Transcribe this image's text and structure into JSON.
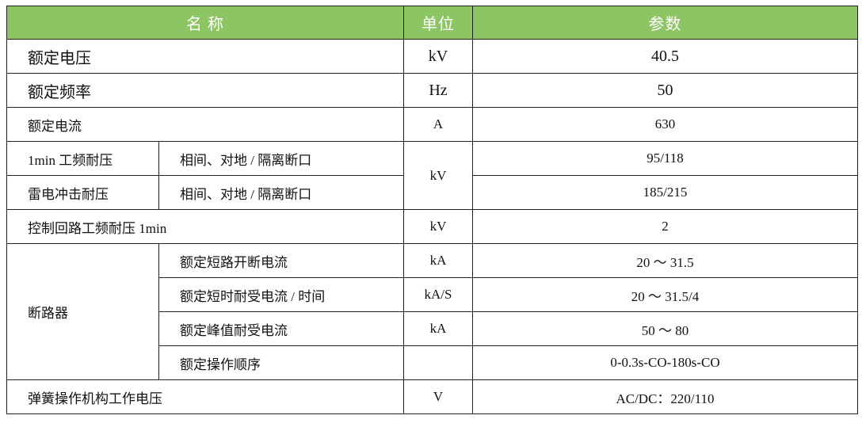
{
  "header": {
    "name": "名 称",
    "unit": "单位",
    "param": "参数",
    "bg": "#8dc565"
  },
  "rows": {
    "r1": {
      "name": "额定电压",
      "unit": "kV",
      "value": "40.5"
    },
    "r2": {
      "name": "额定频率",
      "unit": "Hz",
      "value": "50"
    },
    "r3": {
      "name": "额定电流",
      "unit": "A",
      "value": "630"
    },
    "r4": {
      "name": "1min 工频耐压",
      "sub": "相间、对地 / 隔离断口",
      "value": "95/118"
    },
    "r5": {
      "name": "雷电冲击耐压",
      "sub": "相间、对地 / 隔离断口",
      "value": "185/215"
    },
    "r45_unit": "kV",
    "r6": {
      "name": "控制回路工频耐压 1min",
      "unit": "kV",
      "value": "2"
    },
    "breaker": {
      "name": "断路器",
      "items": [
        {
          "sub": "额定短路开断电流",
          "unit": "kA",
          "value": "20 ～ 31.5"
        },
        {
          "sub": "额定短时耐受电流 / 时间",
          "unit": "kA/S",
          "value": "20 ～ 31.5/4"
        },
        {
          "sub": "额定峰值耐受电流",
          "unit": "kA",
          "value": "50 ～ 80"
        },
        {
          "sub": "额定操作顺序",
          "unit": "",
          "value": "0-0.3s-CO-180s-CO"
        }
      ]
    },
    "r7": {
      "name": "弹簧操作机构工作电压",
      "unit": "V",
      "value": "AC/DC：220/110"
    }
  }
}
